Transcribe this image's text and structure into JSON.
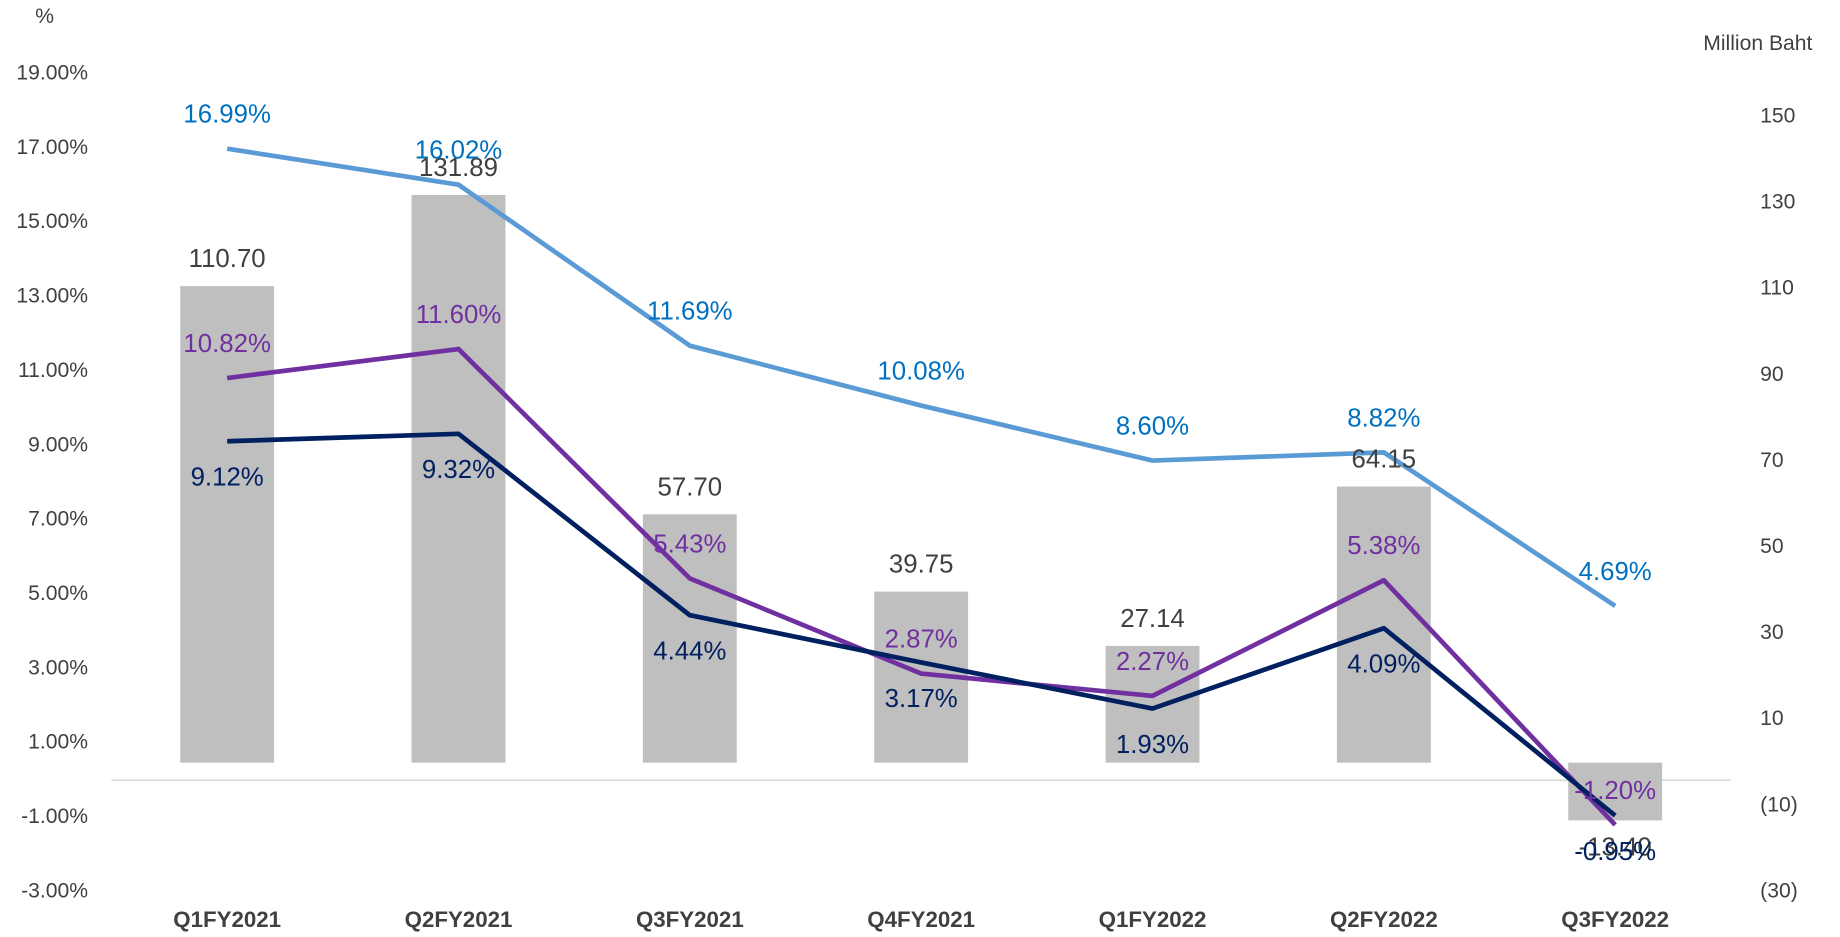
{
  "chart_data": {
    "type": "combo",
    "y_label": "%",
    "y2_label": "Million Baht",
    "categories": [
      "Q1FY2021",
      "Q2FY2021",
      "Q3FY2021",
      "Q4FY2021",
      "Q1FY2022",
      "Q2FY2022",
      "Q3FY2022"
    ],
    "ylim": [
      -3,
      19
    ],
    "yticks": [
      {
        "value": -3,
        "label": "-3.00%"
      },
      {
        "value": -1,
        "label": "-1.00%"
      },
      {
        "value": 1,
        "label": "1.00%"
      },
      {
        "value": 3,
        "label": "3.00%"
      },
      {
        "value": 5,
        "label": "5.00%"
      },
      {
        "value": 7,
        "label": "7.00%"
      },
      {
        "value": 9,
        "label": "9.00%"
      },
      {
        "value": 11,
        "label": "11.00%"
      },
      {
        "value": 13,
        "label": "13.00%"
      },
      {
        "value": 15,
        "label": "15.00%"
      },
      {
        "value": 17,
        "label": "17.00%"
      },
      {
        "value": 19,
        "label": "19.00%"
      }
    ],
    "y2lim": [
      -30,
      160
    ],
    "y2ticks": [
      {
        "value": -30,
        "label": "(30)"
      },
      {
        "value": -10,
        "label": "(10)"
      },
      10,
      30,
      50,
      70,
      90,
      110,
      130,
      150
    ],
    "series": [
      {
        "type": "bar",
        "axis": "y2",
        "color": "#bfbfbf",
        "label_color": "#404040",
        "values": [
          110.7,
          131.89,
          57.7,
          39.75,
          27.14,
          64.15,
          -13.4
        ],
        "value_labels": [
          "110.70",
          "131.89",
          "57.70",
          "39.75",
          "27.14",
          "64.15",
          "-13.40"
        ]
      },
      {
        "type": "line",
        "color": "#5b9bd5",
        "label_color": "#0070c0",
        "label_position": "above",
        "values": [
          16.99,
          16.02,
          11.69,
          10.08,
          8.6,
          8.82,
          4.69
        ],
        "value_labels": [
          "16.99%",
          "16.02%",
          "11.69%",
          "10.08%",
          "8.60%",
          "8.82%",
          "4.69%"
        ]
      },
      {
        "type": "line",
        "color": "#7030a0",
        "label_color": "#7030a0",
        "label_position": "above",
        "values": [
          10.82,
          11.6,
          5.43,
          2.87,
          2.27,
          5.38,
          -1.2
        ],
        "value_labels": [
          "10.82%",
          "11.60%",
          "5.43%",
          "2.87%",
          "2.27%",
          "5.38%",
          "-1.20%"
        ]
      },
      {
        "type": "line",
        "color": "#002060",
        "label_color": "#002060",
        "label_position": "below",
        "values": [
          9.12,
          9.32,
          4.44,
          3.17,
          1.93,
          4.09,
          -0.95
        ],
        "value_labels": [
          "9.12%",
          "9.32%",
          "4.44%",
          "3.17%",
          "1.93%",
          "4.09%",
          "-0.95%"
        ]
      }
    ]
  }
}
